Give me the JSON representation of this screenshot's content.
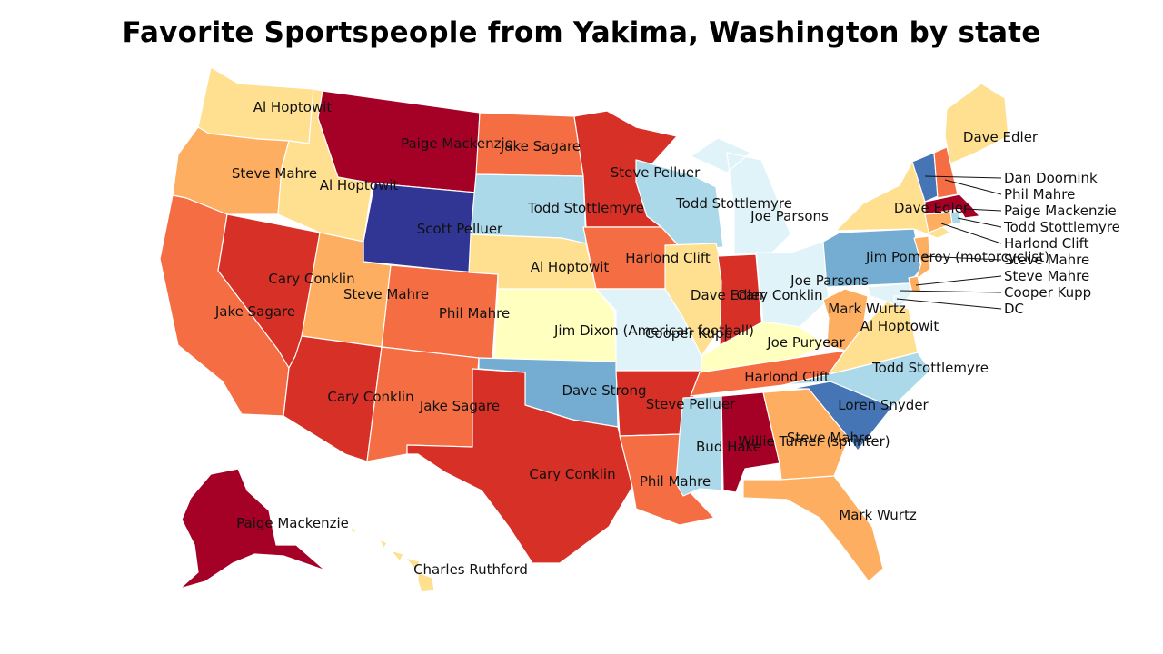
{
  "title": "Favorite Sportspeople from Yakima, Washington by state",
  "colors": {
    "c1": "#a50026",
    "c2": "#d73027",
    "c3": "#f46d43",
    "c4": "#fdae61",
    "c5": "#fee090",
    "c6": "#ffffbf",
    "c7": "#e0f3f8",
    "c8": "#abd9e9",
    "c9": "#74add1",
    "c10": "#4575b4",
    "c11": "#313695"
  },
  "states": [
    {
      "code": "WA",
      "label": "Al Hoptowit",
      "color": "c5"
    },
    {
      "code": "OR",
      "label": "Steve Mahre",
      "color": "c4"
    },
    {
      "code": "CA",
      "label": "Jake Sagare",
      "color": "c3"
    },
    {
      "code": "NV",
      "label": "Cary Conklin",
      "color": "c2"
    },
    {
      "code": "ID",
      "label": "Al Hoptowit",
      "color": "c5"
    },
    {
      "code": "MT",
      "label": "Paige Mackenzie",
      "color": "c1"
    },
    {
      "code": "WY",
      "label": "Scott Pelluer",
      "color": "c11"
    },
    {
      "code": "UT",
      "label": "Steve Mahre",
      "color": "c4"
    },
    {
      "code": "AZ",
      "label": "Cary Conklin",
      "color": "c2"
    },
    {
      "code": "CO",
      "label": "Phil Mahre",
      "color": "c3"
    },
    {
      "code": "NM",
      "label": "Jake Sagare",
      "color": "c3"
    },
    {
      "code": "ND",
      "label": "Jake Sagare",
      "color": "c3"
    },
    {
      "code": "SD",
      "label": "Todd Stottlemyre",
      "color": "c8"
    },
    {
      "code": "NE",
      "label": "Al Hoptowit",
      "color": "c5"
    },
    {
      "code": "KS",
      "label": "Jim Dixon (American football)",
      "color": "c6"
    },
    {
      "code": "OK",
      "label": "Dave Strong",
      "color": "c9"
    },
    {
      "code": "TX",
      "label": "Cary Conklin",
      "color": "c2"
    },
    {
      "code": "MN",
      "label": "Steve Pelluer",
      "color": "c2"
    },
    {
      "code": "IA",
      "label": "Harlond Clift",
      "color": "c3"
    },
    {
      "code": "MO",
      "label": "Cooper Kupp",
      "color": "c7"
    },
    {
      "code": "AR",
      "label": "Steve Pelluer",
      "color": "c2"
    },
    {
      "code": "LA",
      "label": "Phil Mahre",
      "color": "c3"
    },
    {
      "code": "WI",
      "label": "Todd Stottlemyre",
      "color": "c8"
    },
    {
      "code": "IL",
      "label": "Dave Edler",
      "color": "c5"
    },
    {
      "code": "MI",
      "label": "Joe Parsons",
      "color": "c7"
    },
    {
      "code": "IN",
      "label": "Cary Conklin",
      "color": "c2"
    },
    {
      "code": "OH",
      "label": "Joe Parsons",
      "color": "c7"
    },
    {
      "code": "KY",
      "label": "Joe Puryear",
      "color": "c6"
    },
    {
      "code": "TN",
      "label": "Harlond Clift",
      "color": "c3"
    },
    {
      "code": "MS",
      "label": "Bud Hake",
      "color": "c8"
    },
    {
      "code": "AL",
      "label": "Willie Turner (sprinter)",
      "color": "c1"
    },
    {
      "code": "GA",
      "label": "Steve Mahre",
      "color": "c4"
    },
    {
      "code": "FL",
      "label": "Mark Wurtz",
      "color": "c4"
    },
    {
      "code": "SC",
      "label": "Loren Snyder",
      "color": "c10"
    },
    {
      "code": "NC",
      "label": "Todd Stottlemyre",
      "color": "c8"
    },
    {
      "code": "VA",
      "label": "Al Hoptowit",
      "color": "c5"
    },
    {
      "code": "WV",
      "label": "Mark Wurtz",
      "color": "c4"
    },
    {
      "code": "PA",
      "label": "Jim Pomeroy (motorcyclist)",
      "color": "c9"
    },
    {
      "code": "NY",
      "label": "Dave Edler",
      "color": "c5"
    },
    {
      "code": "ME",
      "label": "Dave Edler",
      "color": "c5"
    },
    {
      "code": "VT",
      "label": "Dan Doornink",
      "color": "c10"
    },
    {
      "code": "NH",
      "label": "Phil Mahre",
      "color": "c3"
    },
    {
      "code": "MA",
      "label": "Paige Mackenzie",
      "color": "c1"
    },
    {
      "code": "RI",
      "label": "Todd Stottlemyre",
      "color": "c8"
    },
    {
      "code": "CT",
      "label": "Harlond Clift",
      "color": "c4"
    },
    {
      "code": "NJ",
      "label": "Steve Mahre",
      "color": "c4"
    },
    {
      "code": "DE",
      "label": "Steve Mahre",
      "color": "c4"
    },
    {
      "code": "MD",
      "label": "Cooper Kupp",
      "color": "c7"
    },
    {
      "code": "DC",
      "label": "DC",
      "color": "c7"
    },
    {
      "code": "AK",
      "label": "Paige Mackenzie",
      "color": "c1"
    },
    {
      "code": "HI",
      "label": "Charles Ruthford",
      "color": "c5"
    }
  ]
}
